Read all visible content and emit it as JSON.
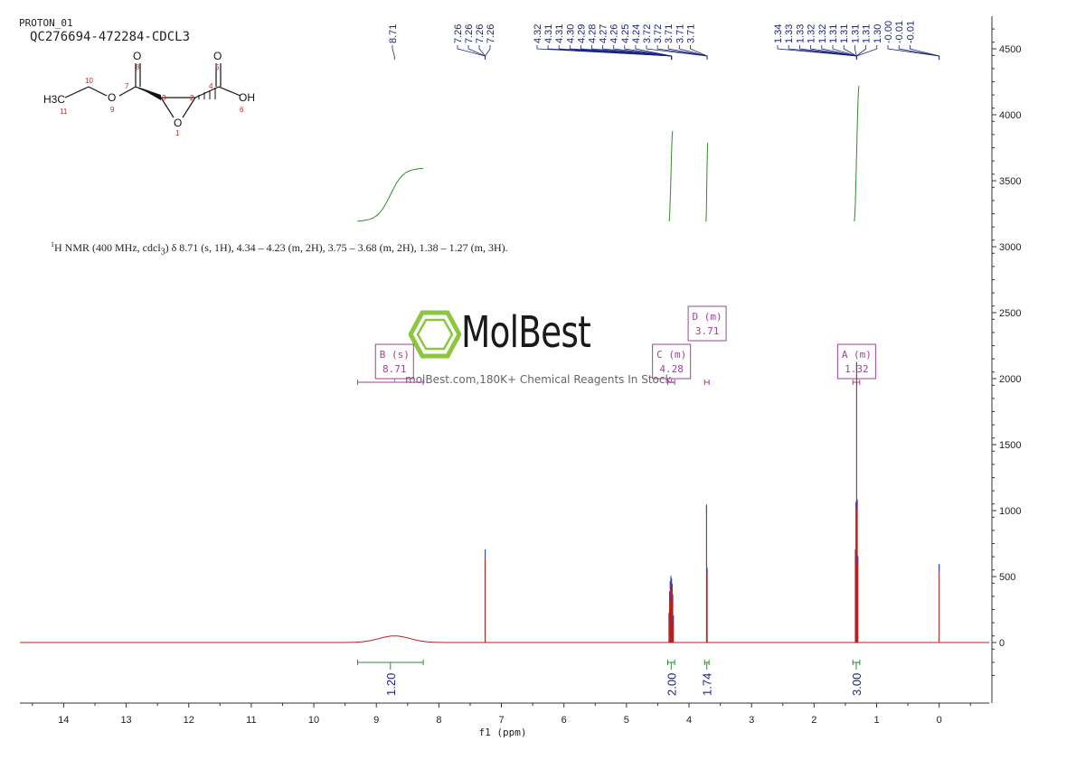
{
  "header": {
    "experiment": "PROTON_01",
    "sample": "QC276694-472284-CDCL3"
  },
  "summary": {
    "prefix_sup": "1",
    "text": "H NMR (400 MHz, cdcl",
    "sub": "3",
    "rest": ") δ 8.71 (s, 1H), 4.34 – 4.23 (m, 2H), 3.75 – 3.68 (m, 2H), 1.38 – 1.27 (m, 3H)."
  },
  "watermark": {
    "brand": "MolBest",
    "tagline": "molBest.com,180K+ Chemical Reagents In Stock."
  },
  "structure": {
    "atoms": [
      "H3C",
      "11",
      "10",
      "O",
      "9",
      "7",
      "O",
      "8",
      "3",
      "2",
      "O",
      "1",
      "4",
      "O",
      "5",
      "OH",
      "6"
    ]
  },
  "colors": {
    "spectrum": "#b22222",
    "peak_labels": "#1a237e",
    "integral": "#2e8b2e",
    "multiplet_box": "#a0429b",
    "axis": "#333333"
  },
  "chart_data": {
    "type": "line",
    "title": "",
    "xlabel": "f1 (ppm)",
    "ylabel": "",
    "xlim": [
      14.7,
      -0.8
    ],
    "ylim": [
      -450,
      4750
    ],
    "x_reversed": true,
    "x_ticks": [
      14,
      13,
      12,
      11,
      10,
      9,
      8,
      7,
      6,
      5,
      4,
      3,
      2,
      1,
      0
    ],
    "y_ticks": [
      0,
      500,
      1000,
      1500,
      2000,
      2500,
      3000,
      3500,
      4000,
      4500
    ],
    "peaks": [
      {
        "ppm": 8.71,
        "height": 50,
        "width": 0.35,
        "type": "broad"
      },
      {
        "ppm": 7.26,
        "height": 700,
        "width": 0.004
      },
      {
        "ppm": 4.32,
        "height": 220,
        "width": 0.004
      },
      {
        "ppm": 4.31,
        "height": 380,
        "width": 0.004
      },
      {
        "ppm": 4.3,
        "height": 460,
        "width": 0.004
      },
      {
        "ppm": 4.29,
        "height": 500,
        "width": 0.004
      },
      {
        "ppm": 4.28,
        "height": 480,
        "width": 0.004
      },
      {
        "ppm": 4.27,
        "height": 440,
        "width": 0.004
      },
      {
        "ppm": 4.26,
        "height": 360,
        "width": 0.004
      },
      {
        "ppm": 4.25,
        "height": 200,
        "width": 0.004
      },
      {
        "ppm": 3.72,
        "height": 1040,
        "width": 0.004
      },
      {
        "ppm": 3.71,
        "height": 560,
        "width": 0.004
      },
      {
        "ppm": 1.34,
        "height": 700,
        "width": 0.004
      },
      {
        "ppm": 1.33,
        "height": 1060,
        "width": 0.004
      },
      {
        "ppm": 1.32,
        "height": 2120,
        "width": 0.004
      },
      {
        "ppm": 1.31,
        "height": 1080,
        "width": 0.004
      },
      {
        "ppm": 1.3,
        "height": 650,
        "width": 0.004
      },
      {
        "ppm": 0.0,
        "height": 590,
        "width": 0.004
      }
    ],
    "peak_labels": {
      "groups": [
        {
          "labels": [
            "8.71"
          ],
          "anchor": 8.71
        },
        {
          "labels": [
            "7.26",
            "7.26",
            "7.26",
            "7.26"
          ],
          "anchor": 7.26
        },
        {
          "labels": [
            "4.32",
            "4.31",
            "4.31",
            "4.30",
            "4.29",
            "4.28",
            "4.27",
            "4.26",
            "4.25",
            "4.24",
            "3.72",
            "3.72",
            "3.71",
            "3.71",
            "3.71"
          ],
          "anchor": 4.28,
          "anchor2": 3.71
        },
        {
          "labels": [
            "1.34",
            "1.33",
            "1.33",
            "1.32",
            "1.32",
            "1.31",
            "1.31",
            "1.31",
            "1.31",
            "1.30",
            "-0.00",
            "-0.01",
            "-0.01"
          ],
          "anchor": 1.32,
          "anchor2": 0.0
        }
      ]
    },
    "multiplets": [
      {
        "label": "B (s)",
        "shift": "8.71",
        "ppm": 8.71,
        "from": 9.3,
        "to": 8.25,
        "box_y": 1.0
      },
      {
        "label": "C (m)",
        "shift": "4.28",
        "ppm": 4.28,
        "from": 4.34,
        "to": 4.23,
        "box_y": 1.0
      },
      {
        "label": "D (m)",
        "shift": "3.71",
        "ppm": 3.71,
        "from": 3.75,
        "to": 3.68,
        "box_y": 1.3
      },
      {
        "label": "A (m)",
        "shift": "1.32",
        "ppm": 1.32,
        "from": 1.38,
        "to": 1.27,
        "box_y": 1.0
      }
    ],
    "integrals": [
      {
        "from": 9.3,
        "to": 8.25,
        "value": "1.20"
      },
      {
        "from": 4.34,
        "to": 4.23,
        "value": "2.00"
      },
      {
        "from": 3.75,
        "to": 3.68,
        "value": "1.74"
      },
      {
        "from": 1.38,
        "to": 1.27,
        "value": "3.00"
      }
    ]
  }
}
